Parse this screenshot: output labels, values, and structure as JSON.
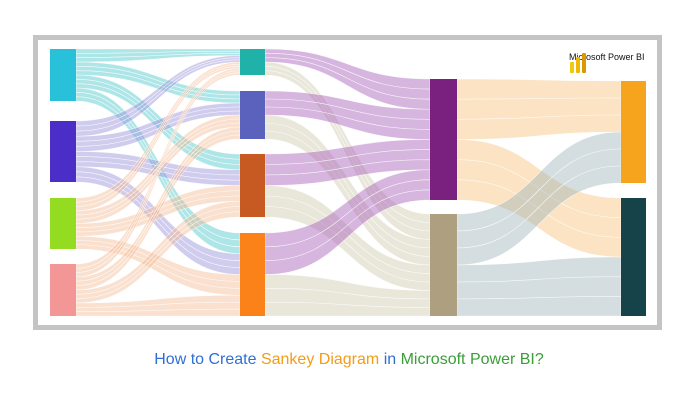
{
  "colors": {
    "flow_source_1": "#3fc4c8",
    "flow_source_2": "#8f86d6",
    "flow_source_3": "#f2b58a",
    "flow_stage2_1": "#a45ab8",
    "flow_stage2_2": "#cfc7ad",
    "flow_stage3_1": "#f6c27a",
    "flow_stage3_2": "#9fb3b8",
    "caption_part_1": "#2f6fd6",
    "caption_part_2": "#f29c18",
    "caption_part_3": "#3a9e38"
  },
  "diagram": {
    "logo_text": "Microsoft Power BI",
    "stage_1_nodes": [
      {
        "color": "#29c0d9"
      },
      {
        "color": "#4b2ec8"
      },
      {
        "color": "#94dc22"
      },
      {
        "color": "#f39696"
      }
    ],
    "stage_2_nodes": [
      {
        "color": "#20b2a8"
      },
      {
        "color": "#5a62bd"
      },
      {
        "color": "#c65a22"
      },
      {
        "color": "#fb8119"
      }
    ],
    "stage_3_nodes": [
      {
        "color": "#7a2180"
      },
      {
        "color": "#ad9f80"
      }
    ],
    "stage_4_nodes": [
      {
        "color": "#f6a31d"
      },
      {
        "color": "#16434a"
      }
    ]
  },
  "caption": {
    "part_1": "How to Create",
    "part_2": "Sankey Diagram",
    "part_3": "in",
    "part_4": "Microsoft Power BI?"
  }
}
